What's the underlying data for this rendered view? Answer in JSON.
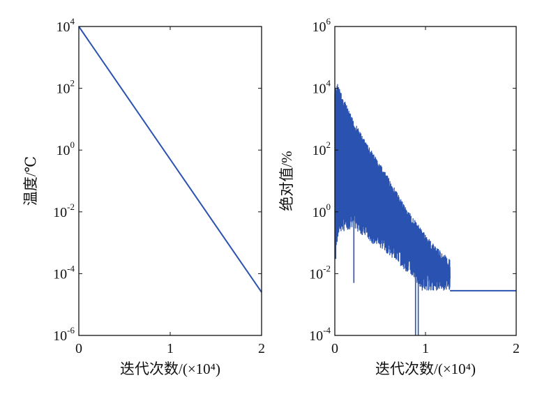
{
  "chart_data": [
    {
      "type": "line",
      "ylabel": "温度/℃",
      "xlabel": "迭代次数/(×10⁴)",
      "xlim": [
        0,
        2
      ],
      "ylim": [
        1e-06,
        10000.0
      ],
      "yscale": "log",
      "xticks": [
        "0",
        "1",
        "2"
      ],
      "yticks": [
        {
          "base": "10",
          "exp": "4"
        },
        {
          "base": "10",
          "exp": "2"
        },
        {
          "base": "10",
          "exp": "0"
        },
        {
          "base": "10",
          "exp": "-2"
        },
        {
          "base": "10",
          "exp": "-4"
        },
        {
          "base": "10",
          "exp": "-6"
        }
      ],
      "grid": false,
      "color": "#2a52b0",
      "series": [
        {
          "x": [
            0,
            2
          ],
          "y": [
            10000,
            2.5e-05
          ]
        }
      ]
    },
    {
      "type": "line",
      "ylabel": "绝对值/%",
      "xlabel": "迭代次数/(×10⁴)",
      "xlim": [
        0,
        2
      ],
      "ylim": [
        0.0001,
        1000000.0
      ],
      "yscale": "log",
      "xticks": [
        "0",
        "1",
        "2"
      ],
      "yticks": [
        {
          "base": "10",
          "exp": "6"
        },
        {
          "base": "10",
          "exp": "4"
        },
        {
          "base": "10",
          "exp": "2"
        },
        {
          "base": "10",
          "exp": "0"
        },
        {
          "base": "10",
          "exp": "-2"
        },
        {
          "base": "10",
          "exp": "-4"
        }
      ],
      "grid": false,
      "color": "#2a52b0",
      "series": [
        {
          "upper_envelope": {
            "x": [
              0,
              0.03,
              0.08,
              0.2,
              0.4,
              0.6,
              0.8,
              0.95,
              1.05,
              1.15,
              1.27
            ],
            "y": [
              10000,
              15000,
              6000,
              1000,
              100,
              12,
              1.2,
              0.3,
              0.12,
              0.06,
              0.03
            ]
          },
          "lower_envelope": {
            "x": [
              0,
              0.05,
              0.2,
              0.4,
              0.6,
              0.75,
              0.9,
              0.95,
              1.27
            ],
            "y": [
              0.05,
              0.2,
              0.3,
              0.1,
              0.04,
              0.015,
              0.005,
              0.0028,
              0.0028
            ]
          },
          "spikes": {
            "x": [
              0.01,
              0.21,
              0.89,
              0.92
            ],
            "y": [
              0.03,
              0.005,
              0.0001,
              0.0001
            ]
          },
          "steady": {
            "x": [
              1.27,
              2
            ],
            "y": [
              0.0028,
              0.0028
            ]
          }
        }
      ]
    }
  ]
}
